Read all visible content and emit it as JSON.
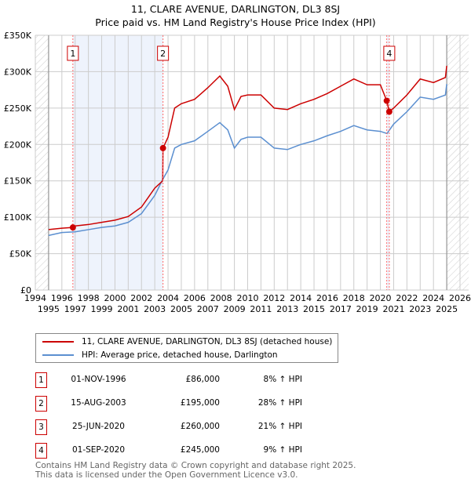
{
  "title": "11, CLARE AVENUE, DARLINGTON, DL3 8SJ",
  "subtitle": "Price paid vs. HM Land Registry's House Price Index (HPI)",
  "colors": {
    "property": "#cc0000",
    "hpi": "#5b8fd0"
  },
  "chart_data": {
    "type": "line",
    "title": "Price paid vs. HM Land Registry's House Price Index (HPI)",
    "ylim": [
      0,
      350000
    ],
    "xlim": [
      1994,
      2026
    ],
    "yticks": [
      "£0",
      "£50K",
      "£100K",
      "£150K",
      "£200K",
      "£250K",
      "£300K",
      "£350K"
    ],
    "ytick_values": [
      0,
      50000,
      100000,
      150000,
      200000,
      250000,
      300000,
      350000
    ],
    "xticks": [
      "1994",
      "1995",
      "1996",
      "1997",
      "1998",
      "1999",
      "2000",
      "2001",
      "2002",
      "2003",
      "2004",
      "2005",
      "2006",
      "2007",
      "2008",
      "2009",
      "2010",
      "2011",
      "2012",
      "2013",
      "2014",
      "2015",
      "2016",
      "2017",
      "2018",
      "2019",
      "2020",
      "2021",
      "2022",
      "2023",
      "2024",
      "2025",
      "2026"
    ],
    "series": [
      {
        "name": "11, CLARE AVENUE, DARLINGTON, DL3 8SJ (detached house)",
        "color": "#cc0000",
        "x": [
          1995,
          1996,
          1996.83,
          1997,
          1998,
          1999,
          2000,
          2001,
          2002,
          2003,
          2003.6,
          2003.62,
          2004,
          2004.5,
          2005,
          2006,
          2007,
          2007.9,
          2008.5,
          2009,
          2009.5,
          2010,
          2011,
          2012,
          2013,
          2014,
          2015,
          2016,
          2017,
          2018,
          2019,
          2020,
          2020.48,
          2020.67,
          2021,
          2022,
          2023,
          2024,
          2024.9,
          2025.0
        ],
        "y": [
          83000,
          85000,
          86000,
          88000,
          90000,
          93000,
          96000,
          101000,
          114000,
          140000,
          150000,
          195000,
          210000,
          250000,
          256000,
          262000,
          278000,
          294000,
          280000,
          248000,
          266000,
          268000,
          268000,
          250000,
          248000,
          256000,
          262000,
          270000,
          280000,
          290000,
          282000,
          282000,
          260000,
          245000,
          250000,
          268000,
          290000,
          285000,
          292000,
          308000
        ]
      },
      {
        "name": "HPI: Average price, detached house, Darlington",
        "color": "#5b8fd0",
        "x": [
          1995,
          1996,
          1997,
          1998,
          1999,
          2000,
          2001,
          2002,
          2003,
          2003.6,
          2004,
          2004.5,
          2005,
          2006,
          2007,
          2007.9,
          2008.5,
          2009,
          2009.5,
          2010,
          2011,
          2012,
          2013,
          2014,
          2015,
          2016,
          2017,
          2018,
          2019,
          2020,
          2020.5,
          2021,
          2022,
          2023,
          2024,
          2024.9,
          2025.0
        ],
        "y": [
          75000,
          79000,
          80000,
          83000,
          86000,
          88000,
          93000,
          105000,
          130000,
          152000,
          165000,
          195000,
          200000,
          205000,
          218000,
          230000,
          220000,
          195000,
          207000,
          210000,
          210000,
          195000,
          193000,
          200000,
          205000,
          212000,
          218000,
          226000,
          220000,
          218000,
          215000,
          228000,
          245000,
          265000,
          262000,
          268000,
          283000
        ]
      }
    ],
    "sales": [
      {
        "label": "1",
        "x": 1996.83,
        "y": 86000
      },
      {
        "label": "2",
        "x": 2003.62,
        "y": 195000
      },
      {
        "label": "3",
        "x": 2020.48,
        "y": 260000
      },
      {
        "label": "4",
        "x": 2020.67,
        "y": 245000
      }
    ],
    "shaded_ranges": [
      [
        1996.83,
        2003.62
      ],
      [
        2020.48,
        2020.67
      ]
    ],
    "data_range": [
      1995,
      2025.0
    ]
  },
  "legend": [
    {
      "label": "11, CLARE AVENUE, DARLINGTON, DL3 8SJ (detached house)"
    },
    {
      "label": "HPI: Average price, detached house, Darlington"
    }
  ],
  "transactions": [
    {
      "n": "1",
      "date": "01-NOV-1996",
      "price": "£86,000",
      "hpi": "8% ↑ HPI"
    },
    {
      "n": "2",
      "date": "15-AUG-2003",
      "price": "£195,000",
      "hpi": "28% ↑ HPI"
    },
    {
      "n": "3",
      "date": "25-JUN-2020",
      "price": "£260,000",
      "hpi": "21% ↑ HPI"
    },
    {
      "n": "4",
      "date": "01-SEP-2020",
      "price": "£245,000",
      "hpi": "9% ↑ HPI"
    }
  ],
  "footer": [
    "Contains HM Land Registry data © Crown copyright and database right 2025.",
    "This data is licensed under the Open Government Licence v3.0."
  ]
}
